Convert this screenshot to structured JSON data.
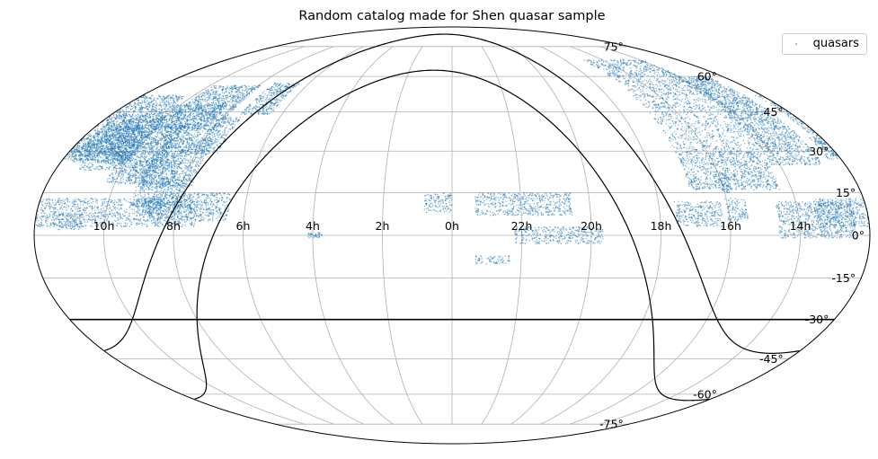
{
  "chart_data": {
    "type": "scatter",
    "projection": "mollweide",
    "title": "Random catalog made for Shen quasar sample",
    "xlabel": "",
    "ylabel": "",
    "grid": true,
    "legend_placement": "top-right",
    "series": [
      {
        "name": "quasars",
        "color": "#1f77b4",
        "marker": "point",
        "regions": [
          {
            "ra": [
              111,
              202
            ],
            "dec": [
              3,
              13
            ]
          },
          {
            "ra": [
              115,
              139
            ],
            "dec": [
              17,
              35
            ]
          },
          {
            "ra": [
              118,
              148
            ],
            "dec": [
              38,
              56
            ]
          },
          {
            "ra": [
              134,
              146
            ],
            "dec": [
              20,
              40
            ]
          },
          {
            "ra": [
              148,
              170
            ],
            "dec": [
              23,
              42
            ]
          },
          {
            "ra": [
              170,
              186
            ],
            "dec": [
              27,
              35
            ]
          },
          {
            "ra": [
              186,
              219
            ],
            "dec": [
              -1,
              12
            ]
          },
          {
            "ra": [
              190,
              214
            ],
            "dec": [
              25,
              60
            ]
          },
          {
            "ra": [
              208,
              255
            ],
            "dec": [
              30,
              68
            ]
          },
          {
            "ra": [
              215,
              255
            ],
            "dec": [
              16,
              30
            ]
          },
          {
            "ra": [
              232,
              241
            ],
            "dec": [
              5,
              13
            ]
          },
          {
            "ra": [
              236,
              241
            ],
            "dec": [
              15,
              23
            ]
          },
          {
            "ra": [
              243,
              263
            ],
            "dec": [
              3,
              12
            ]
          },
          {
            "ra": [
              295,
              333
            ],
            "dec": [
              -3,
              3
            ]
          },
          {
            "ra": [
              308,
              350
            ],
            "dec": [
              7,
              15
            ]
          },
          {
            "ra": [
              335,
              350
            ],
            "dec": [
              -10,
              -7
            ]
          },
          {
            "ra": [
              0,
              12
            ],
            "dec": [
              8,
              15
            ]
          },
          {
            "ra": [
              56,
              62
            ],
            "dec": [
              -1,
              1
            ]
          },
          {
            "ra": [
              97,
              132
            ],
            "dec": [
              5,
              15
            ]
          },
          {
            "ra": [
              118,
              140
            ],
            "dec": [
              10,
              20
            ]
          },
          {
            "ra": [
              124,
              154
            ],
            "dec": [
              18,
              48
            ]
          },
          {
            "ra": [
              148,
              176
            ],
            "dec": [
              26,
              44
            ]
          },
          {
            "ra": [
              154,
              184
            ],
            "dec": [
              28,
              52
            ]
          },
          {
            "ra": [
              150,
              160
            ],
            "dec": [
              25,
              30
            ]
          },
          {
            "ra": [
              126,
              135
            ],
            "dec": [
              7,
              13
            ]
          },
          {
            "ra": [
              96,
              112
            ],
            "dec": [
              44,
              57
            ]
          },
          {
            "ra": [
              110,
              122
            ],
            "dec": [
              29,
              43
            ]
          },
          {
            "ra": [
              160,
              170
            ],
            "dec": [
              2,
              8
            ]
          }
        ]
      }
    ],
    "ra_ticks": [
      "14h",
      "16h",
      "18h",
      "20h",
      "22h",
      "0h",
      "2h",
      "4h",
      "6h",
      "8h",
      "10h"
    ],
    "ra_tick_values": [
      210,
      240,
      270,
      300,
      330,
      0,
      30,
      60,
      90,
      120,
      150
    ],
    "dec_ticks": [
      "-75°",
      "-60°",
      "-45°",
      "-30°",
      "-15°",
      "0°",
      "15°",
      "30°",
      "45°",
      "60°",
      "75°"
    ],
    "dec_tick_values": [
      -75,
      -60,
      -45,
      -30,
      -15,
      0,
      15,
      30,
      45,
      60,
      75
    ],
    "reference_lines": [
      {
        "kind": "horizontal",
        "dec": -30,
        "color": "#000000"
      },
      {
        "kind": "galactic-latitude",
        "b": 0,
        "color": "#000000"
      },
      {
        "kind": "galactic-latitude",
        "b": 20,
        "color": "#000000"
      }
    ]
  }
}
